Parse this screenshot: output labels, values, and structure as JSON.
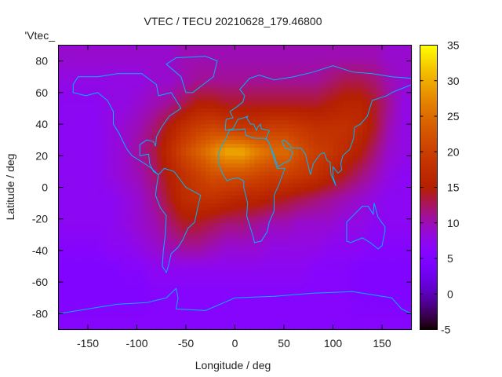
{
  "chart_data": {
    "type": "heatmap",
    "title": "VTEC / TECU 20210628_179.46800",
    "xlabel": "Longitude / deg",
    "ylabel": "Latitude / deg",
    "key_label": "'Vtec_",
    "xlim": [
      -180,
      180
    ],
    "ylim": [
      -90,
      90
    ],
    "xticks": [
      -150,
      -100,
      -50,
      0,
      50,
      100,
      150
    ],
    "yticks": [
      80,
      60,
      40,
      20,
      0,
      -20,
      -40,
      -60,
      -80
    ],
    "colorbar": {
      "range": [
        -5,
        35
      ],
      "ticks": [
        35,
        30,
        25,
        20,
        15,
        10,
        5,
        0,
        -5
      ],
      "palette": "black-blue-purple-red-yellow"
    },
    "grid_lon": [
      -172.5,
      -157.5,
      -142.5,
      -127.5,
      -112.5,
      -97.5,
      -82.5,
      -67.5,
      -52.5,
      -37.5,
      -22.5,
      -7.5,
      7.5,
      22.5,
      37.5,
      52.5,
      67.5,
      82.5,
      97.5,
      112.5,
      127.5,
      142.5,
      157.5,
      172.5
    ],
    "grid_lat": [
      82.5,
      67.5,
      52.5,
      37.5,
      22.5,
      7.5,
      -7.5,
      -22.5,
      -37.5,
      -52.5,
      -67.5,
      -82.5
    ],
    "values": [
      [
        9,
        9,
        9,
        9,
        9,
        9,
        9,
        9,
        10,
        10,
        10,
        10,
        10,
        10,
        10,
        10,
        10,
        10,
        10,
        10,
        10,
        10,
        9,
        9
      ],
      [
        8,
        8,
        8,
        8,
        8,
        8,
        9,
        9,
        10,
        11,
        11,
        11,
        11,
        11,
        11,
        11,
        11,
        11,
        12,
        13,
        13,
        12,
        10,
        9
      ],
      [
        7,
        7,
        7,
        8,
        8,
        9,
        10,
        11,
        13,
        15,
        15,
        14,
        14,
        14,
        14,
        14,
        14,
        14,
        15,
        16,
        16,
        14,
        11,
        8
      ],
      [
        7,
        7,
        7,
        8,
        9,
        10,
        12,
        15,
        18,
        20,
        21,
        20,
        19,
        19,
        20,
        20,
        19,
        18,
        18,
        18,
        17,
        14,
        10,
        8
      ],
      [
        7,
        7,
        7,
        8,
        9,
        11,
        13,
        17,
        21,
        24,
        27,
        30,
        30,
        27,
        25,
        25,
        22,
        20,
        19,
        17,
        15,
        12,
        9,
        8
      ],
      [
        7,
        7,
        7,
        8,
        9,
        10,
        12,
        15,
        18,
        20,
        22,
        22,
        22,
        21,
        20,
        20,
        19,
        18,
        16,
        14,
        12,
        10,
        8,
        7
      ],
      [
        7,
        7,
        7,
        7,
        8,
        9,
        11,
        14,
        17,
        18,
        18,
        17,
        16,
        16,
        15,
        14,
        13,
        12,
        11,
        10,
        9,
        8,
        7,
        7
      ],
      [
        7,
        7,
        7,
        7,
        8,
        9,
        10,
        12,
        14,
        14,
        13,
        12,
        12,
        11,
        10,
        10,
        9,
        9,
        9,
        8,
        8,
        7,
        7,
        7
      ],
      [
        6,
        6,
        6,
        7,
        7,
        8,
        9,
        10,
        11,
        11,
        10,
        9,
        9,
        9,
        8,
        8,
        8,
        8,
        7,
        7,
        7,
        6,
        6,
        6
      ],
      [
        5,
        5,
        5,
        5,
        6,
        6,
        7,
        7,
        7,
        7,
        7,
        7,
        7,
        7,
        7,
        7,
        7,
        6,
        6,
        6,
        5,
        5,
        5,
        5
      ],
      [
        5,
        5,
        5,
        5,
        5,
        5,
        6,
        6,
        6,
        6,
        6,
        6,
        6,
        6,
        6,
        6,
        6,
        6,
        6,
        6,
        5,
        5,
        5,
        5
      ],
      [
        6,
        6,
        6,
        6,
        6,
        6,
        6,
        6,
        6,
        6,
        6,
        6,
        6,
        6,
        6,
        6,
        6,
        6,
        6,
        6,
        6,
        6,
        6,
        6
      ]
    ],
    "coastline_color": "#00b4ff"
  }
}
